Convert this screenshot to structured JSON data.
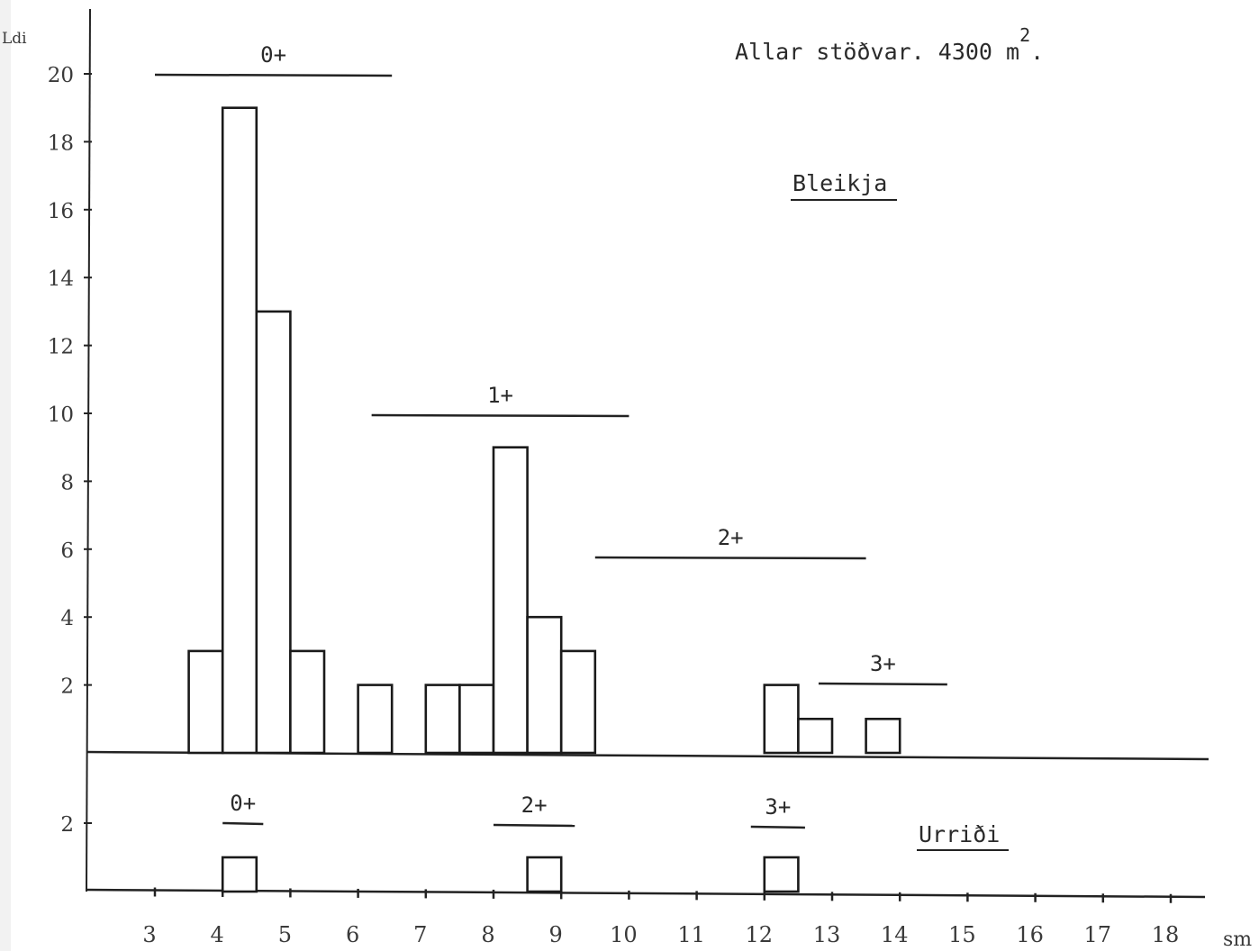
{
  "title": "Allar stöðvar. 4300 m",
  "title_superscript": "2",
  "title_suffix": ".",
  "y_axis_label": "Ldi",
  "x_axis_unit": "sm",
  "chart_data": [
    {
      "type": "bar",
      "name": "Bleikja",
      "ylim": [
        0,
        20
      ],
      "y_ticks": [
        "2",
        "4",
        "6",
        "8",
        "10",
        "12",
        "14",
        "16",
        "18",
        "20"
      ],
      "x": [
        4,
        4.5,
        5,
        5.5,
        6.5,
        7.5,
        8,
        8.5,
        9,
        9.5,
        12.5,
        13,
        14
      ],
      "values": [
        3,
        19,
        13,
        3,
        2,
        2,
        2,
        9,
        4,
        3,
        2,
        1,
        1
      ],
      "age_groups": [
        {
          "label": "0+",
          "from": 3,
          "to": 6.5
        },
        {
          "label": "1+",
          "from": 6.2,
          "to": 10
        },
        {
          "label": "2+",
          "from": 9.5,
          "to": 13.5
        },
        {
          "label": "3+",
          "from": 12.8,
          "to": 14.7
        }
      ]
    },
    {
      "type": "bar",
      "name": "Urriði",
      "ylim": [
        0,
        2
      ],
      "y_ticks": [
        "2"
      ],
      "x": [
        4.5,
        9,
        12.5
      ],
      "values": [
        1,
        1,
        1
      ],
      "age_groups": [
        {
          "label": "0+",
          "from": 4,
          "to": 4.6
        },
        {
          "label": "2+",
          "from": 8,
          "to": 9.2
        },
        {
          "label": "3+",
          "from": 11.8,
          "to": 12.6
        }
      ]
    }
  ],
  "x_ticks": [
    "3",
    "4",
    "5",
    "6",
    "7",
    "8",
    "9",
    "10",
    "11",
    "12",
    "13",
    "14",
    "15",
    "16",
    "17",
    "18"
  ]
}
